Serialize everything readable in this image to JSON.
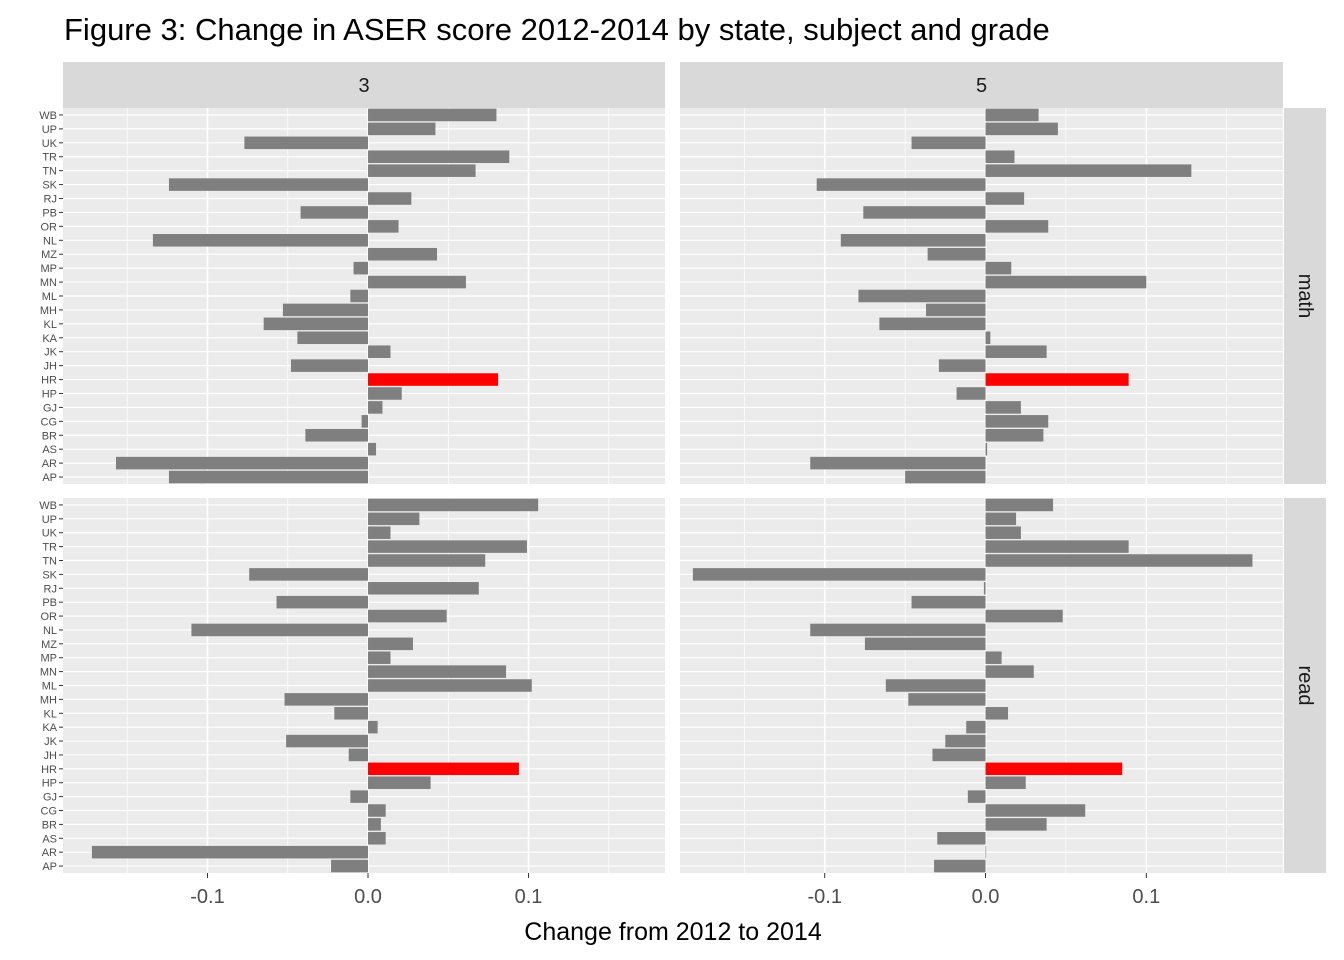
{
  "chart_data": {
    "type": "bar",
    "orientation": "horizontal",
    "title": "Figure 3: Change in ASER score 2012-2014 by state, subject and grade",
    "xlabel": "Change from 2012 to 2014",
    "ylabel": "",
    "xlim": [
      -0.19,
      0.185
    ],
    "xticks": [
      -0.1,
      0.0,
      0.1
    ],
    "xtick_labels": [
      "-0.1",
      "0.0",
      "0.1"
    ],
    "grid": true,
    "column_facets": [
      "3",
      "5"
    ],
    "row_facets": [
      "math",
      "read"
    ],
    "states": [
      "AP",
      "AR",
      "AS",
      "BR",
      "CG",
      "GJ",
      "HP",
      "HR",
      "JH",
      "JK",
      "KA",
      "KL",
      "MH",
      "ML",
      "MN",
      "MP",
      "MZ",
      "NL",
      "OR",
      "PB",
      "RJ",
      "SK",
      "TN",
      "TR",
      "UK",
      "UP",
      "WB"
    ],
    "highlight_state": "HR",
    "colors": {
      "bar": "#7f7f7f",
      "highlight": "#ff0000",
      "panel": "#ebebeb",
      "strip": "#d9d9d9",
      "grid": "#ffffff"
    },
    "panels": [
      {
        "grade": "3",
        "subject": "math",
        "values": [
          -0.124,
          -0.157,
          0.005,
          -0.039,
          -0.004,
          0.009,
          0.021,
          0.081,
          -0.048,
          0.014,
          -0.044,
          -0.065,
          -0.053,
          -0.011,
          0.061,
          -0.009,
          0.043,
          -0.134,
          0.019,
          -0.042,
          0.027,
          -0.124,
          0.067,
          0.088,
          -0.077,
          0.042,
          0.08
        ]
      },
      {
        "grade": "5",
        "subject": "math",
        "values": [
          -0.05,
          -0.109,
          0.001,
          0.036,
          0.039,
          0.022,
          -0.018,
          0.089,
          -0.029,
          0.038,
          0.003,
          -0.066,
          -0.037,
          -0.079,
          0.1,
          0.016,
          -0.036,
          -0.09,
          0.039,
          -0.076,
          0.024,
          -0.105,
          0.128,
          0.018,
          -0.046,
          0.045,
          0.033
        ]
      },
      {
        "grade": "3",
        "subject": "read",
        "values": [
          -0.023,
          -0.172,
          0.011,
          0.008,
          0.011,
          -0.011,
          0.039,
          0.094,
          -0.012,
          -0.051,
          0.006,
          -0.021,
          -0.052,
          0.102,
          0.086,
          0.014,
          0.028,
          -0.11,
          0.049,
          -0.057,
          0.069,
          -0.074,
          0.073,
          0.099,
          0.014,
          0.032,
          0.106
        ]
      },
      {
        "grade": "5",
        "subject": "read",
        "values": [
          -0.032,
          0.0,
          -0.03,
          0.038,
          0.062,
          -0.011,
          0.025,
          0.085,
          -0.033,
          -0.025,
          -0.012,
          0.014,
          -0.048,
          -0.062,
          0.03,
          0.01,
          -0.075,
          -0.109,
          0.048,
          -0.046,
          -0.001,
          -0.182,
          0.166,
          0.089,
          0.022,
          0.019,
          0.042
        ]
      }
    ]
  }
}
